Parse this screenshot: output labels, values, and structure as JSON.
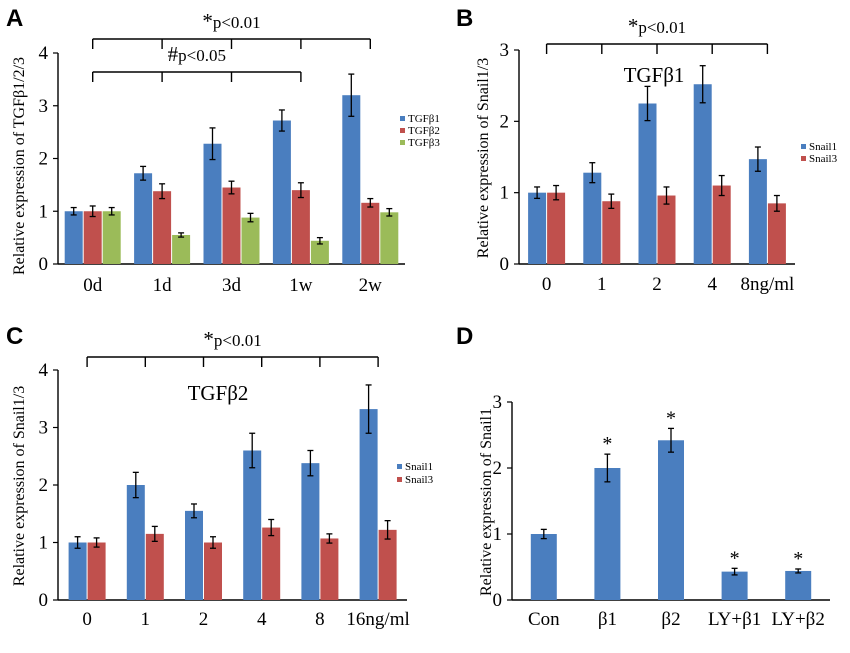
{
  "chart_data": [
    {
      "panel": "A",
      "type": "bar",
      "ylabel": "Relative expression of TGFβ1/2/3",
      "ylim": [
        0,
        4
      ],
      "yticks": [
        "0",
        "1",
        "2",
        "3",
        "4"
      ],
      "categories": [
        "0d",
        "1d",
        "3d",
        "1w",
        "2w"
      ],
      "series": [
        {
          "name": "TGFβ1",
          "color": "#4a7ebf",
          "values": [
            1.0,
            1.72,
            2.28,
            2.72,
            3.2
          ],
          "errors": [
            0.07,
            0.13,
            0.3,
            0.2,
            0.4
          ]
        },
        {
          "name": "TGFβ2",
          "color": "#c0504d",
          "values": [
            1.0,
            1.38,
            1.45,
            1.4,
            1.16
          ],
          "errors": [
            0.1,
            0.14,
            0.12,
            0.14,
            0.08
          ]
        },
        {
          "name": "TGFβ3",
          "color": "#9bbb59",
          "values": [
            1.0,
            0.55,
            0.88,
            0.44,
            0.98
          ],
          "errors": [
            0.07,
            0.04,
            0.08,
            0.06,
            0.07
          ]
        }
      ],
      "significance": [
        {
          "label_symbol": "*",
          "label_text": "p<0.01",
          "from": 0,
          "to": 4
        },
        {
          "label_symbol": "#",
          "label_text": "p<0.05",
          "from": 0,
          "to": 3
        }
      ],
      "legend_position": "right"
    },
    {
      "panel": "B",
      "type": "bar",
      "title": "TGFβ1",
      "ylabel": "Relative expression of Snail1/3",
      "ylim": [
        0,
        3
      ],
      "yticks": [
        "0",
        "1",
        "2",
        "3"
      ],
      "categories": [
        "0",
        "1",
        "2",
        "4",
        "8ng/ml"
      ],
      "series": [
        {
          "name": "Snail1",
          "color": "#4a7ebf",
          "values": [
            1.0,
            1.28,
            2.25,
            2.52,
            1.47
          ],
          "errors": [
            0.08,
            0.14,
            0.24,
            0.26,
            0.17
          ]
        },
        {
          "name": "Snail3",
          "color": "#c0504d",
          "values": [
            1.0,
            0.88,
            0.96,
            1.1,
            0.85
          ],
          "errors": [
            0.1,
            0.1,
            0.12,
            0.14,
            0.11
          ]
        }
      ],
      "significance": [
        {
          "label_symbol": "*",
          "label_text": "p<0.01",
          "from": 0,
          "to": 4
        }
      ],
      "legend_position": "right"
    },
    {
      "panel": "C",
      "type": "bar",
      "title": "TGFβ2",
      "ylabel": "Relative expression of Snail1/3",
      "ylim": [
        0,
        4
      ],
      "yticks": [
        "0",
        "1",
        "2",
        "3",
        "4"
      ],
      "categories": [
        "0",
        "1",
        "2",
        "4",
        "8",
        "16ng/ml"
      ],
      "series": [
        {
          "name": "Snail1",
          "color": "#4a7ebf",
          "values": [
            1.0,
            2.0,
            1.55,
            2.6,
            2.38,
            3.32
          ],
          "errors": [
            0.1,
            0.22,
            0.12,
            0.3,
            0.22,
            0.42
          ]
        },
        {
          "name": "Snail3",
          "color": "#c0504d",
          "values": [
            1.0,
            1.15,
            1.0,
            1.26,
            1.07,
            1.22
          ],
          "errors": [
            0.08,
            0.13,
            0.1,
            0.14,
            0.08,
            0.16
          ]
        }
      ],
      "significance": [
        {
          "label_symbol": "*",
          "label_text": "p<0.01",
          "from": 0,
          "to": 5
        }
      ],
      "legend_position": "right"
    },
    {
      "panel": "D",
      "type": "bar",
      "ylabel": "Relative expression of Snail1",
      "ylim": [
        0,
        3
      ],
      "yticks": [
        "0",
        "1",
        "2",
        "3"
      ],
      "categories": [
        "Con",
        "β1",
        "β2",
        "LY+β1",
        "LY+β2"
      ],
      "series": [
        {
          "name": "Snail1",
          "color": "#4a7ebf",
          "values": [
            1.0,
            2.0,
            2.42,
            0.43,
            0.44
          ],
          "errors": [
            0.07,
            0.21,
            0.18,
            0.05,
            0.03
          ]
        }
      ],
      "stars": [
        "",
        "*",
        "*",
        "*",
        "*"
      ],
      "legend_position": "none"
    }
  ]
}
